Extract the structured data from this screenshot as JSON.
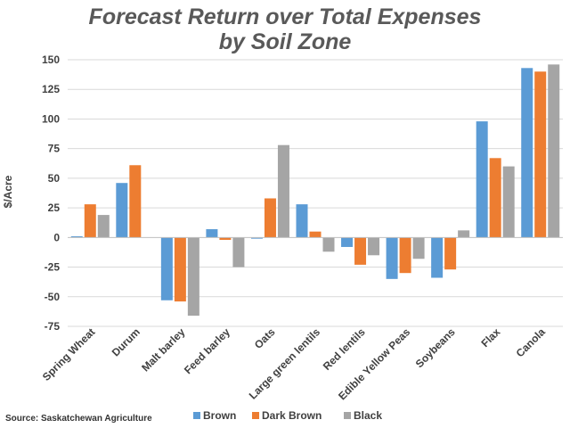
{
  "chart_data": {
    "type": "bar",
    "title": "Forecast Return over Total Expenses",
    "subtitle": "by Soil Zone",
    "ylabel": "$/Acre",
    "xlabel": "",
    "ylim": [
      -75,
      150
    ],
    "yticks": [
      150,
      125,
      100,
      75,
      50,
      25,
      0,
      -25,
      -50,
      -75
    ],
    "grid": true,
    "legend_position": "bottom-right",
    "categories": [
      "Spring Wheat",
      "Durum",
      "Malt barley",
      "Feed barley",
      "Oats",
      "Large green lentils",
      "Red lentils",
      "Edible Yellow Peas",
      "Soybeans",
      "Flax",
      "Canola"
    ],
    "series": [
      {
        "name": "Brown",
        "color": "#5b9bd5",
        "values": [
          1,
          46,
          -53,
          7,
          -1,
          28,
          -8,
          -35,
          -34,
          98,
          143
        ]
      },
      {
        "name": "Dark Brown",
        "color": "#ed7d31",
        "values": [
          28,
          61,
          -54,
          -2,
          33,
          5,
          -23,
          -30,
          -27,
          67,
          140
        ]
      },
      {
        "name": "Black",
        "color": "#a5a5a5",
        "values": [
          19,
          null,
          -66,
          -25,
          78,
          -12,
          -15,
          -18,
          6,
          60,
          146
        ]
      }
    ],
    "source": "Source: Saskatchewan Agriculture"
  }
}
